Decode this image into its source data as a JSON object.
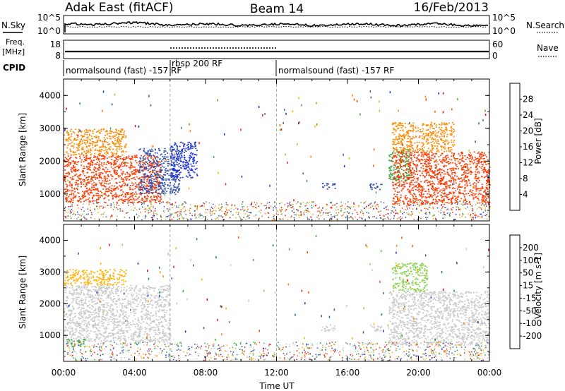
{
  "header": {
    "station": "Adak East (fitACF)",
    "beam": "Beam 14",
    "date": "16/Feb/2013"
  },
  "strips": {
    "nsky_label": "N.Sky",
    "nsearch_label": "N.Search",
    "freq_label_1": "Freq.",
    "freq_label_2": "[MHz]",
    "nave_label": "Nave",
    "cpid_label": "CPID",
    "noise_ticks_left": [
      "10^5",
      "10^0"
    ],
    "noise_ticks_right": [
      "10^5",
      "10^0"
    ],
    "freq_ticks": [
      "18",
      "8"
    ],
    "nave_ticks": [
      "60",
      "0"
    ],
    "cpid_segments": [
      {
        "label": "normalsound (fast) -157 RF",
        "start_h": 0,
        "end_h": 6
      },
      {
        "label": "rbsp 200 RF",
        "start_h": 6,
        "end_h": 12
      },
      {
        "label": "normalsound (fast) -157 RF",
        "start_h": 12,
        "end_h": 24
      }
    ]
  },
  "chart_data": [
    {
      "type": "heatmap",
      "panel": "power",
      "ylabel": "Slant Range [km]",
      "xlim": [
        0,
        24
      ],
      "ylim": [
        180,
        4500
      ],
      "yticks": [
        1000,
        2000,
        3000,
        4000
      ],
      "colorbar": {
        "label": "Power [dB]",
        "ticks": [
          "4",
          "8",
          "12",
          "16",
          "20",
          "24",
          "28"
        ],
        "colors": [
          "#1a2fd6",
          "#2c4fb0",
          "#3a7a6a",
          "#4aa24a",
          "#9fc83a",
          "#ffb000",
          "#ff8a00",
          "#ff5a00",
          "#ff2a00",
          "#ee0000"
        ]
      },
      "regions": [
        {
          "h0": 0.0,
          "h1": 5.5,
          "r0": 750,
          "r1": 2200,
          "color": "#ff3a00"
        },
        {
          "h0": 0.0,
          "h1": 3.5,
          "r0": 2200,
          "r1": 3000,
          "color": "#ff8a00"
        },
        {
          "h0": 4.2,
          "h1": 6.5,
          "r0": 1000,
          "r1": 2400,
          "color": "#2c4fb0"
        },
        {
          "h0": 6.0,
          "h1": 7.5,
          "r0": 1500,
          "r1": 2600,
          "color": "#1a2fd6"
        },
        {
          "h0": 14.5,
          "h1": 15.3,
          "r0": 1150,
          "r1": 1350,
          "color": "#2c4fb0"
        },
        {
          "h0": 17.2,
          "h1": 17.9,
          "r0": 1150,
          "r1": 1350,
          "color": "#2c4fb0"
        },
        {
          "h0": 18.3,
          "h1": 19.5,
          "r0": 1400,
          "r1": 2400,
          "color": "#4aa24a"
        },
        {
          "h0": 18.5,
          "h1": 24.0,
          "r0": 700,
          "r1": 2300,
          "color": "#ff3a00"
        },
        {
          "h0": 18.5,
          "h1": 22.0,
          "r0": 2300,
          "r1": 3200,
          "color": "#ff8a00"
        }
      ]
    },
    {
      "type": "heatmap",
      "panel": "velocity",
      "ylabel": "Slant Range [km]",
      "xlabel": "Time UT",
      "xlim": [
        0,
        24
      ],
      "ylim": [
        180,
        4500
      ],
      "yticks": [
        1000,
        2000,
        3000,
        4000
      ],
      "xticks": [
        "00:00",
        "04:00",
        "08:00",
        "12:00",
        "16:00",
        "20:00",
        "00:00"
      ],
      "colorbar": {
        "label": "Velocity [m s-1]",
        "ticks": [
          "200",
          "100",
          "50",
          "15",
          "-15",
          "-50",
          "-100",
          "-200"
        ],
        "colors": [
          "#1a2fd6",
          "#2c55b8",
          "#2a7a5a",
          "#3fa83a",
          "#8ad24a",
          "#c8c8c8",
          "#c8c8c8",
          "#ffb000",
          "#ff8a00",
          "#ff5000",
          "#ee0000"
        ]
      },
      "regions": [
        {
          "h0": 0.0,
          "h1": 6.0,
          "r0": 800,
          "r1": 2600,
          "color": "#c8c8c8"
        },
        {
          "h0": 0.0,
          "h1": 3.5,
          "r0": 2600,
          "r1": 3100,
          "color": "#ffb000"
        },
        {
          "h0": 0.1,
          "h1": 1.2,
          "r0": 650,
          "r1": 900,
          "color": "#3fa83a"
        },
        {
          "h0": 14.5,
          "h1": 15.3,
          "r0": 1150,
          "r1": 1350,
          "color": "#c8c8c8"
        },
        {
          "h0": 17.2,
          "h1": 17.9,
          "r0": 1150,
          "r1": 1350,
          "color": "#c8c8c8"
        },
        {
          "h0": 18.3,
          "h1": 24.0,
          "r0": 700,
          "r1": 2400,
          "color": "#c8c8c8"
        },
        {
          "h0": 18.5,
          "h1": 20.5,
          "r0": 2400,
          "r1": 3300,
          "color": "#8ad24a"
        }
      ]
    }
  ]
}
